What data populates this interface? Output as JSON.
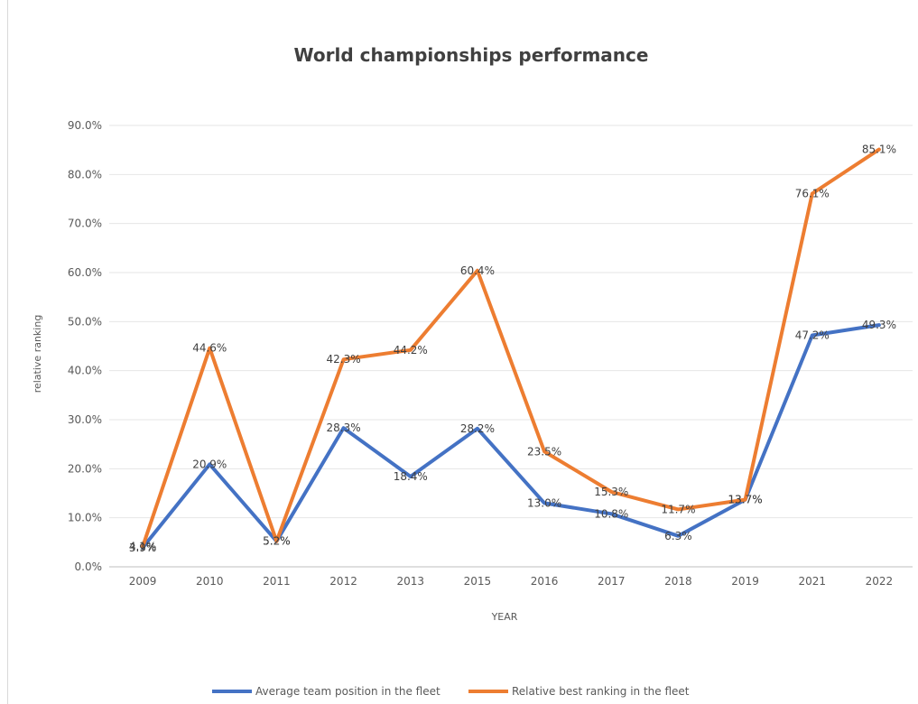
{
  "chart_data": {
    "type": "line",
    "title": "World championships performance",
    "xlabel": "YEAR",
    "ylabel": "relative ranking",
    "categories": [
      "2009",
      "2010",
      "2011",
      "2012",
      "2013",
      "2015",
      "2016",
      "2017",
      "2018",
      "2019",
      "2021",
      "2022"
    ],
    "ylim": [
      0,
      90
    ],
    "yticks": [
      "0.0%",
      "10.0%",
      "20.0%",
      "30.0%",
      "40.0%",
      "50.0%",
      "60.0%",
      "70.0%",
      "80.0%",
      "90.0%"
    ],
    "grid": true,
    "legend": "bottom",
    "series": [
      {
        "name": "Average team position in the fleet",
        "color": "#4472c4",
        "values": [
          3.9,
          20.9,
          5.2,
          28.3,
          18.4,
          28.2,
          13.0,
          10.8,
          6.3,
          13.7,
          47.2,
          49.3
        ],
        "labels": [
          "3.9%",
          "20.9%",
          "5.2%",
          "28.3%",
          "18.4%",
          "28.2%",
          "13.0%",
          "10.8%",
          "6.3%",
          "13.7%",
          "47.2%",
          "49.3%"
        ]
      },
      {
        "name": "Relative best ranking in the fleet",
        "color": "#ed7d31",
        "values": [
          4.1,
          44.6,
          5.2,
          42.3,
          44.2,
          60.4,
          23.5,
          15.3,
          11.7,
          13.7,
          76.1,
          85.1
        ],
        "labels": [
          "4.1%",
          "44.6%",
          "5.2%",
          "42.3%",
          "44.2%",
          "60.4%",
          "23.5%",
          "15.3%",
          "11.7%",
          "13.7%",
          "76.1%",
          "85.1%"
        ]
      }
    ]
  }
}
